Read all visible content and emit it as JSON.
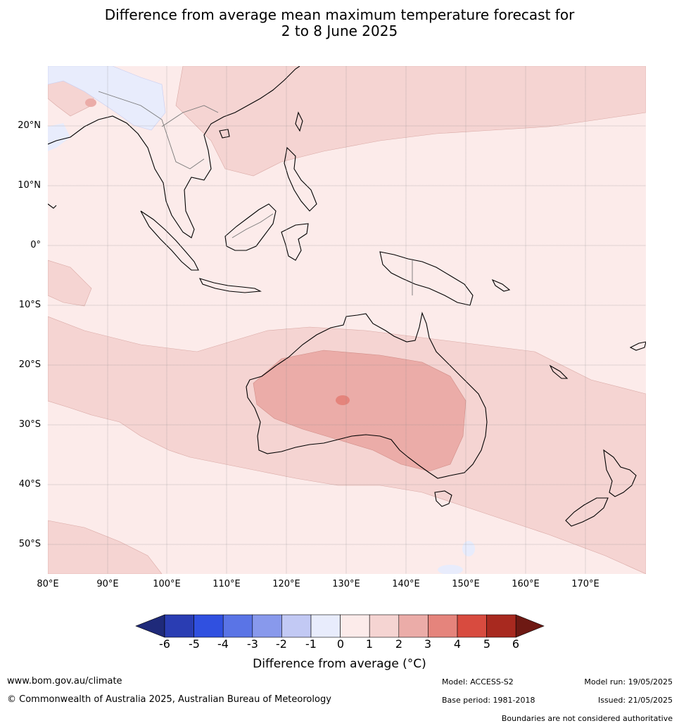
{
  "title_line1": "Difference from average mean maximum temperature forecast for",
  "title_line2": "2 to 8 June 2025",
  "lat_labels": [
    "20°N",
    "10°N",
    "0°",
    "10°S",
    "20°S",
    "30°S",
    "40°S",
    "50°S"
  ],
  "lon_labels": [
    "80°E",
    "90°E",
    "100°E",
    "110°E",
    "120°E",
    "130°E",
    "140°E",
    "150°E",
    "160°E",
    "170°E"
  ],
  "colorbar": {
    "ticks": [
      "-6",
      "-5",
      "-4",
      "-3",
      "-2",
      "-1",
      "0",
      "1",
      "2",
      "3",
      "4",
      "5",
      "6"
    ],
    "colors": [
      "#1f2a7a",
      "#2a3db3",
      "#3050e0",
      "#5a74e6",
      "#8899ec",
      "#c2c9f4",
      "#e8ecfc",
      "#fcebea",
      "#f5d4d2",
      "#ebaca8",
      "#e5847c",
      "#d84b3f",
      "#a8291f",
      "#6e1913"
    ],
    "label": "Difference from average (°C)"
  },
  "footer": {
    "website": "www.bom.gov.au/climate",
    "copyright": "© Commonwealth of Australia 2025, Australian Bureau of Meteorology",
    "model": "Model: ACCESS-S2",
    "base_period": "Base period: 1981-2018",
    "model_run": "Model run: 19/05/2025",
    "issued": "Issued: 21/05/2025",
    "disclaimer": "Boundaries are not considered authoritative"
  }
}
